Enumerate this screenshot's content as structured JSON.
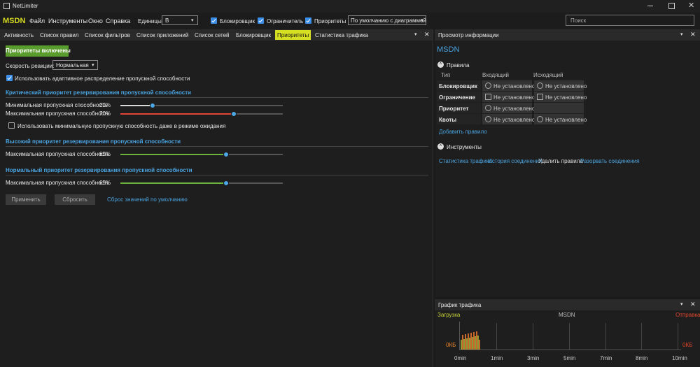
{
  "window": {
    "title": "NetLimiter"
  },
  "menu": {
    "brand": "MSDN",
    "items": [
      "Файл",
      "Инструменты",
      "Окно",
      "Справка"
    ],
    "units_label": "Единицы",
    "units_value": "B",
    "toggles": [
      {
        "label": "Блокировщик",
        "checked": true
      },
      {
        "label": "Ограничитель",
        "checked": true
      },
      {
        "label": "Приоритеты",
        "checked": true
      }
    ],
    "view": "По умолчанию с диаграммой",
    "search": "Поиск"
  },
  "tabs": {
    "items": [
      "Активность",
      "Список правил",
      "Список фильтров",
      "Список приложений",
      "Список сетей",
      "Блокировщик",
      "Приоритеты",
      "Статистика трафика"
    ],
    "active": 6
  },
  "priorities": {
    "enabled_button": "Приоритеты включены",
    "reaction_label": "Скорость реакции:",
    "reaction_value": "Нормальная",
    "adaptive": {
      "label": "Использовать адаптивное распределение пропускной способности",
      "checked": true
    },
    "range": [
      0,
      100
    ],
    "groups": [
      {
        "title": "Критический приоритет резервирования пропускной способности",
        "sliders": [
          {
            "label": "Минимальная пропускная способность",
            "value": 20,
            "value_label": "20%",
            "color": "#d8d8d8"
          },
          {
            "label": "Максимальная пропускная способность",
            "value": 70,
            "value_label": "70%",
            "color": "#e0453a"
          }
        ],
        "idle_option": {
          "label": "Использовать минимальную пропускную способность даже в режиме ожидания",
          "checked": false
        }
      },
      {
        "title": "Высокий приоритет резервирования пропускной способности",
        "sliders": [
          {
            "label": "Максимальная пропускная способность",
            "value": 65,
            "value_label": "65%",
            "color": "#6cb33e"
          }
        ]
      },
      {
        "title": "Нормальный приоритет резервирования пропускной способности",
        "sliders": [
          {
            "label": "Максимальная пропускная способность",
            "value": 65,
            "value_label": "65%",
            "color": "#6cb33e"
          }
        ]
      }
    ],
    "buttons": [
      "Применить",
      "Сбросить"
    ],
    "reset_link": "Сброс значений по умолчанию"
  },
  "info": {
    "header": "Просмотр информации",
    "title": "MSDN",
    "rules": {
      "heading": "Правила",
      "columns": [
        "Тип",
        "Входящий",
        "Исходящий"
      ],
      "rows": [
        {
          "type": "Блокировщик",
          "in": "Не установлено",
          "out": "Не установлено"
        },
        {
          "type": "Ограничение",
          "in": "Не установлено",
          "out": "Не установлено"
        },
        {
          "type": "Приоритет",
          "in": "Не установлено",
          "out": null
        },
        {
          "type": "Квоты",
          "in": "Не установлено",
          "out": "Не установлено"
        }
      ],
      "add_link": "Добавить правило"
    },
    "tools": {
      "heading": "Инструменты",
      "links": [
        "Статистика трафика",
        "История соединений",
        "Удалить правила",
        "Разорвать соединения"
      ]
    }
  },
  "graph": {
    "header": "График трафика",
    "download": "Загрузка",
    "name": "MSDN",
    "upload": "Отправка",
    "left_scale": "0КБ",
    "right_scale": "0КБ",
    "times": [
      "0min",
      "1min",
      "3min",
      "5min",
      "7min",
      "8min",
      "10min"
    ]
  }
}
